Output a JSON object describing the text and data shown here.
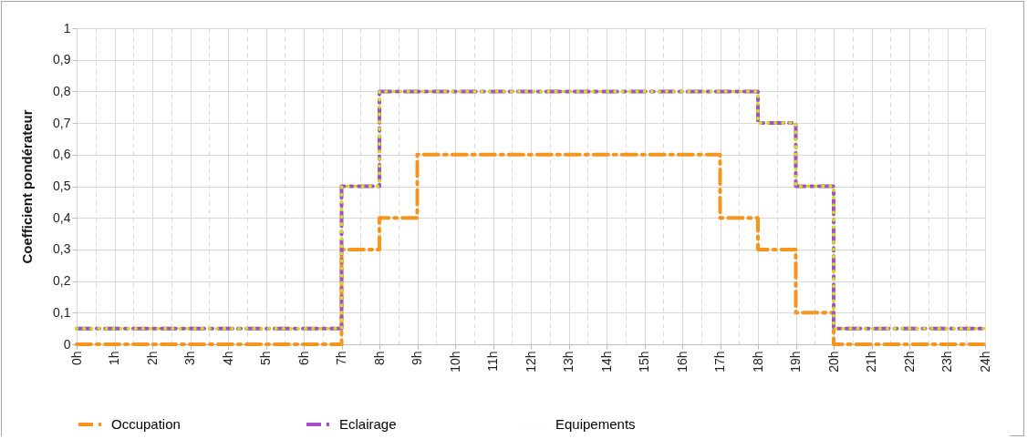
{
  "chart_data": {
    "type": "step",
    "ylabel": "Coefficient pondérateur",
    "x": [
      0,
      1,
      2,
      3,
      4,
      5,
      6,
      7,
      8,
      9,
      10,
      11,
      12,
      13,
      14,
      15,
      16,
      17,
      18,
      19,
      20,
      21,
      22,
      23,
      24
    ],
    "xlim": [
      0,
      24
    ],
    "xticks": [
      {
        "value": 0,
        "label": "0h"
      },
      {
        "value": 0.5,
        "label": null
      },
      {
        "value": 1,
        "label": "1h"
      },
      {
        "value": 1.5,
        "label": null
      },
      {
        "value": 2,
        "label": "2h"
      },
      {
        "value": 2.5,
        "label": null
      },
      {
        "value": 3,
        "label": "3h"
      },
      {
        "value": 3.5,
        "label": null
      },
      {
        "value": 4,
        "label": "4h"
      },
      {
        "value": 4.5,
        "label": null
      },
      {
        "value": 5,
        "label": "5h"
      },
      {
        "value": 5.5,
        "label": null
      },
      {
        "value": 6,
        "label": "6h"
      },
      {
        "value": 6.5,
        "label": null
      },
      {
        "value": 7,
        "label": "7h"
      },
      {
        "value": 7.5,
        "label": null
      },
      {
        "value": 8,
        "label": "8h"
      },
      {
        "value": 8.5,
        "label": null
      },
      {
        "value": 9,
        "label": "9h"
      },
      {
        "value": 9.5,
        "label": null
      },
      {
        "value": 10,
        "label": "10h"
      },
      {
        "value": 10.5,
        "label": null
      },
      {
        "value": 11,
        "label": "11h"
      },
      {
        "value": 11.5,
        "label": null
      },
      {
        "value": 12,
        "label": "12h"
      },
      {
        "value": 12.5,
        "label": null
      },
      {
        "value": 13,
        "label": "13h"
      },
      {
        "value": 13.5,
        "label": null
      },
      {
        "value": 14,
        "label": "14h"
      },
      {
        "value": 14.5,
        "label": null
      },
      {
        "value": 15,
        "label": "15h"
      },
      {
        "value": 15.5,
        "label": null
      },
      {
        "value": 16,
        "label": "16h"
      },
      {
        "value": 16.5,
        "label": null
      },
      {
        "value": 17,
        "label": "17h"
      },
      {
        "value": 17.5,
        "label": null
      },
      {
        "value": 18,
        "label": "18h"
      },
      {
        "value": 18.5,
        "label": null
      },
      {
        "value": 19,
        "label": "19h"
      },
      {
        "value": 19.5,
        "label": null
      },
      {
        "value": 20,
        "label": "20h"
      },
      {
        "value": 20.5,
        "label": null
      },
      {
        "value": 21,
        "label": "21h"
      },
      {
        "value": 21.5,
        "label": null
      },
      {
        "value": 22,
        "label": "22h"
      },
      {
        "value": 22.5,
        "label": null
      },
      {
        "value": 23,
        "label": "23h"
      },
      {
        "value": 23.5,
        "label": null
      },
      {
        "value": 24,
        "label": "24h"
      }
    ],
    "ylim": [
      0,
      1
    ],
    "yticks": [
      0,
      {
        "value": 0.1,
        "label": "0,1"
      },
      {
        "value": 0.2,
        "label": "0,2"
      },
      {
        "value": 0.3,
        "label": "0,3"
      },
      {
        "value": 0.4,
        "label": "0,4"
      },
      {
        "value": 0.5,
        "label": "0,5"
      },
      {
        "value": 0.6,
        "label": "0,6"
      },
      {
        "value": 0.7,
        "label": "0,7"
      },
      {
        "value": 0.8,
        "label": "0,8"
      },
      {
        "value": 0.9,
        "label": "0,9"
      },
      1
    ],
    "grid": true,
    "legend": "bottom",
    "series": [
      {
        "name": "Occupation",
        "color": "#f7941d",
        "line_style": "dashed",
        "values": [
          0,
          0,
          0,
          0,
          0,
          0,
          0,
          0.3,
          0.4,
          0.6,
          0.6,
          0.6,
          0.6,
          0.6,
          0.6,
          0.6,
          0.6,
          0.4,
          0.3,
          0.1,
          0,
          0,
          0,
          0,
          0
        ]
      },
      {
        "name": "Eclairage",
        "color": "#a64ec8",
        "line_style": "dashed",
        "values": [
          0.05,
          0.05,
          0.05,
          0.05,
          0.05,
          0.05,
          0.05,
          0.5,
          0.8,
          0.8,
          0.8,
          0.8,
          0.8,
          0.8,
          0.8,
          0.8,
          0.8,
          0.8,
          0.7,
          0.5,
          0.05,
          0.05,
          0.05,
          0.05,
          0.05
        ]
      },
      {
        "name": "Equipements",
        "color": "#c8e01e",
        "line_style": "dotted",
        "values": [
          0.05,
          0.05,
          0.05,
          0.05,
          0.05,
          0.05,
          0.05,
          0.5,
          0.8,
          0.8,
          0.8,
          0.8,
          0.8,
          0.8,
          0.8,
          0.8,
          0.8,
          0.8,
          0.7,
          0.5,
          0.05,
          0.05,
          0.05,
          0.05,
          0.05
        ]
      }
    ]
  }
}
